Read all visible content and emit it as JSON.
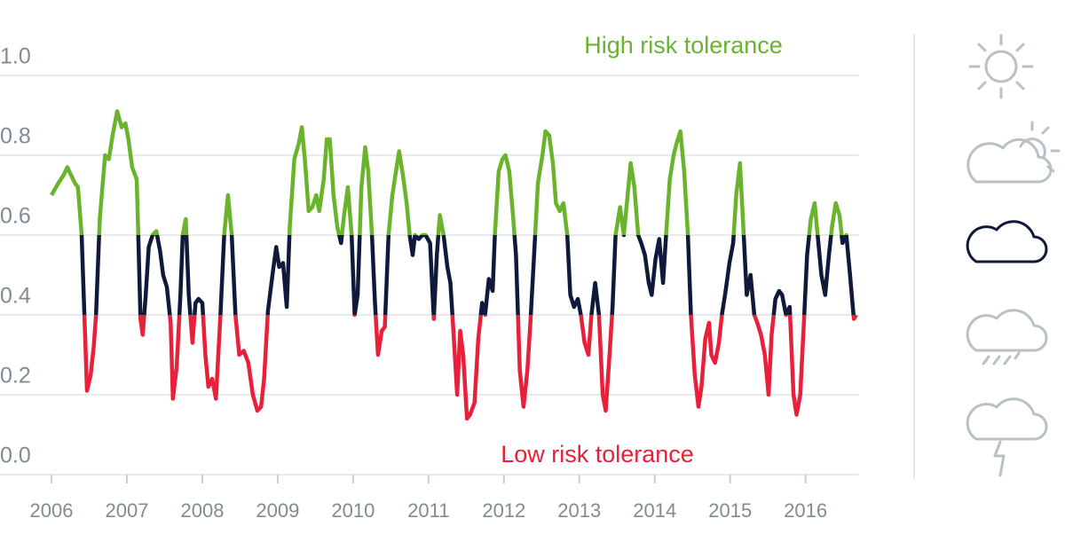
{
  "chart_data": {
    "type": "line",
    "annotations": [
      {
        "text": "High risk tolerance",
        "color": "#6ab42d"
      },
      {
        "text": "Low risk tolerance",
        "color": "#e8203a"
      }
    ],
    "x": [
      2006.0,
      2006.09,
      2006.16,
      2006.21,
      2006.26,
      2006.31,
      2006.35,
      2006.4,
      2006.44,
      2006.47,
      2006.52,
      2006.56,
      2006.59,
      2006.64,
      2006.71,
      2006.76,
      2006.81,
      2006.87,
      2006.93,
      2006.98,
      2007.02,
      2007.07,
      2007.13,
      2007.15,
      2007.18,
      2007.21,
      2007.25,
      2007.29,
      2007.34,
      2007.39,
      2007.44,
      2007.48,
      2007.53,
      2007.58,
      2007.61,
      2007.66,
      2007.71,
      2007.74,
      2007.78,
      2007.82,
      2007.87,
      2007.91,
      2007.95,
      2008.0,
      2008.04,
      2008.08,
      2008.13,
      2008.18,
      2008.24,
      2008.29,
      2008.34,
      2008.39,
      2008.44,
      2008.49,
      2008.55,
      2008.61,
      2008.67,
      2008.73,
      2008.78,
      2008.82,
      2008.87,
      2008.93,
      2008.98,
      2009.02,
      2009.07,
      2009.12,
      2009.16,
      2009.22,
      2009.28,
      2009.32,
      2009.36,
      2009.41,
      2009.46,
      2009.51,
      2009.55,
      2009.61,
      2009.65,
      2009.69,
      2009.74,
      2009.79,
      2009.84,
      2009.88,
      2009.93,
      2009.98,
      2010.02,
      2010.06,
      2010.11,
      2010.16,
      2010.2,
      2010.25,
      2010.29,
      2010.33,
      2010.38,
      2010.42,
      2010.47,
      2010.52,
      2010.56,
      2010.61,
      2010.66,
      2010.71,
      2010.75,
      2010.79,
      2010.82,
      2010.87,
      2010.92,
      2010.96,
      2011.02,
      2011.07,
      2011.11,
      2011.15,
      2011.2,
      2011.25,
      2011.29,
      2011.33,
      2011.38,
      2011.42,
      2011.46,
      2011.51,
      2011.55,
      2011.61,
      2011.66,
      2011.71,
      2011.75,
      2011.8,
      2011.85,
      2011.88,
      2011.93,
      2011.98,
      2012.02,
      2012.07,
      2012.12,
      2012.16,
      2012.21,
      2012.26,
      2012.31,
      2012.35,
      2012.4,
      2012.45,
      2012.51,
      2012.55,
      2012.6,
      2012.65,
      2012.69,
      2012.74,
      2012.79,
      2012.84,
      2012.88,
      2012.93,
      2012.98,
      2013.02,
      2013.07,
      2013.12,
      2013.16,
      2013.21,
      2013.26,
      2013.31,
      2013.35,
      2013.4,
      2013.44,
      2013.48,
      2013.54,
      2013.59,
      2013.64,
      2013.68,
      2013.73,
      2013.78,
      2013.82,
      2013.87,
      2013.92,
      2013.96,
      2014.01,
      2014.06,
      2014.11,
      2014.15,
      2014.2,
      2014.25,
      2014.29,
      2014.34,
      2014.39,
      2014.44,
      2014.48,
      2014.53,
      2014.58,
      2014.62,
      2014.67,
      2014.72,
      2014.75,
      2014.8,
      2014.85,
      2014.89,
      2014.94,
      2014.99,
      2015.04,
      2015.08,
      2015.13,
      2015.18,
      2015.22,
      2015.27,
      2015.32,
      2015.36,
      2015.41,
      2015.46,
      2015.51,
      2015.55,
      2015.6,
      2015.65,
      2015.69,
      2015.74,
      2015.79,
      2015.84,
      2015.88,
      2015.93,
      2015.98,
      2016.02,
      2016.07,
      2016.12,
      2016.16,
      2016.21,
      2016.26,
      2016.31,
      2016.35,
      2016.4,
      2016.45,
      2016.49,
      2016.54,
      2016.59,
      2016.64,
      2016.67
    ],
    "values": [
      0.7,
      0.73,
      0.75,
      0.77,
      0.75,
      0.73,
      0.72,
      0.6,
      0.38,
      0.21,
      0.25,
      0.32,
      0.4,
      0.64,
      0.8,
      0.79,
      0.85,
      0.91,
      0.87,
      0.88,
      0.84,
      0.77,
      0.74,
      0.61,
      0.39,
      0.35,
      0.45,
      0.57,
      0.6,
      0.61,
      0.56,
      0.5,
      0.47,
      0.38,
      0.19,
      0.27,
      0.45,
      0.6,
      0.64,
      0.45,
      0.33,
      0.43,
      0.44,
      0.43,
      0.3,
      0.22,
      0.24,
      0.19,
      0.4,
      0.6,
      0.7,
      0.6,
      0.4,
      0.3,
      0.31,
      0.28,
      0.2,
      0.16,
      0.17,
      0.24,
      0.41,
      0.5,
      0.57,
      0.52,
      0.53,
      0.42,
      0.62,
      0.79,
      0.83,
      0.87,
      0.79,
      0.66,
      0.67,
      0.7,
      0.66,
      0.74,
      0.84,
      0.84,
      0.7,
      0.62,
      0.58,
      0.65,
      0.72,
      0.6,
      0.4,
      0.45,
      0.72,
      0.82,
      0.76,
      0.6,
      0.43,
      0.3,
      0.36,
      0.37,
      0.6,
      0.7,
      0.75,
      0.81,
      0.75,
      0.68,
      0.6,
      0.55,
      0.6,
      0.59,
      0.6,
      0.6,
      0.58,
      0.39,
      0.55,
      0.65,
      0.6,
      0.52,
      0.48,
      0.36,
      0.2,
      0.36,
      0.3,
      0.14,
      0.15,
      0.18,
      0.34,
      0.43,
      0.4,
      0.49,
      0.46,
      0.6,
      0.76,
      0.79,
      0.8,
      0.76,
      0.65,
      0.55,
      0.26,
      0.17,
      0.26,
      0.38,
      0.55,
      0.73,
      0.8,
      0.86,
      0.85,
      0.78,
      0.68,
      0.66,
      0.68,
      0.6,
      0.45,
      0.42,
      0.44,
      0.4,
      0.33,
      0.3,
      0.4,
      0.48,
      0.4,
      0.2,
      0.16,
      0.3,
      0.42,
      0.6,
      0.67,
      0.6,
      0.7,
      0.78,
      0.72,
      0.6,
      0.58,
      0.55,
      0.48,
      0.45,
      0.54,
      0.59,
      0.48,
      0.6,
      0.74,
      0.8,
      0.83,
      0.86,
      0.76,
      0.6,
      0.4,
      0.25,
      0.17,
      0.22,
      0.34,
      0.38,
      0.3,
      0.28,
      0.33,
      0.4,
      0.46,
      0.53,
      0.58,
      0.7,
      0.78,
      0.6,
      0.45,
      0.5,
      0.4,
      0.38,
      0.35,
      0.3,
      0.2,
      0.35,
      0.44,
      0.46,
      0.45,
      0.4,
      0.42,
      0.2,
      0.15,
      0.2,
      0.39,
      0.55,
      0.64,
      0.68,
      0.6,
      0.5,
      0.45,
      0.55,
      0.62,
      0.68,
      0.65,
      0.58,
      0.6,
      0.5,
      0.39,
      0.4
    ],
    "thresholds": [
      0.4,
      0.6
    ],
    "colors": [
      "#e8203a",
      "#0f1a3b",
      "#6ab42d"
    ],
    "xlim": [
      2005.67,
      2016.71
    ],
    "xticks": [
      2006,
      2007,
      2008,
      2009,
      2010,
      2011,
      2012,
      2013,
      2014,
      2015,
      2016
    ],
    "ylim": [
      0,
      1
    ],
    "yticks": [
      {
        "value": 0,
        "label": "0.0"
      },
      0.2,
      0.4,
      0.6,
      {
        "value": 0.8,
        "label": "0.8"
      },
      {
        "value": 1,
        "label": "1.0"
      }
    ],
    "grid": true
  }
}
